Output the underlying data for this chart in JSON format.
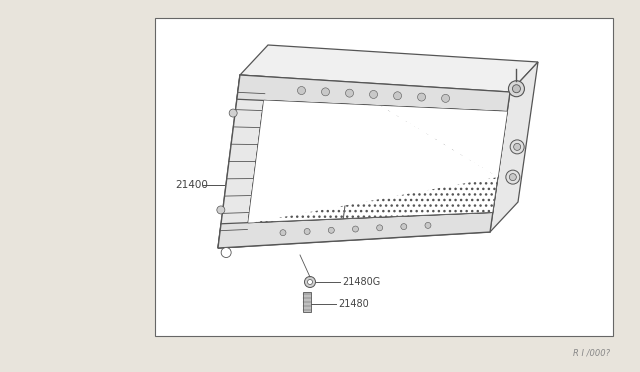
{
  "bg_color": "#e8e4dc",
  "box_color": "#ffffff",
  "line_color": "#555555",
  "text_color": "#444444",
  "ref_text": "R I /000?",
  "label_21400": "21400",
  "label_21480G": "21480G",
  "label_21480": "21480"
}
